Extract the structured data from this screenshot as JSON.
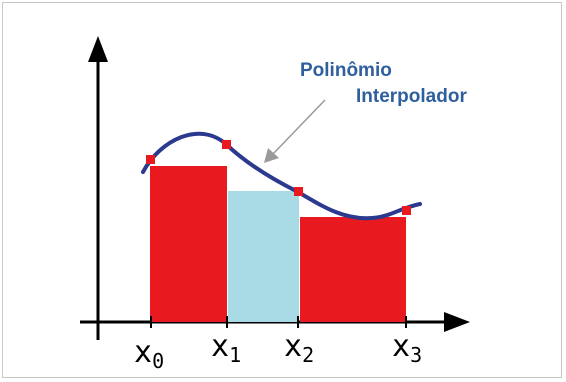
{
  "diagram": {
    "annotation_line1": "Polinômio",
    "annotation_line2": "Interpolador",
    "x_labels": [
      {
        "base": "x",
        "sub": "0"
      },
      {
        "base": "x",
        "sub": "1"
      },
      {
        "base": "x",
        "sub": "2"
      },
      {
        "base": "x",
        "sub": "3"
      }
    ],
    "colors": {
      "bar_red": "#e8191f",
      "bar_light_blue": "#a9dbe6",
      "curve": "#2b3a8f",
      "node_marker": "#e8191f",
      "annotation": "#2f5f9e",
      "arrow": "#9a9a9a",
      "axis": "#000000"
    }
  }
}
